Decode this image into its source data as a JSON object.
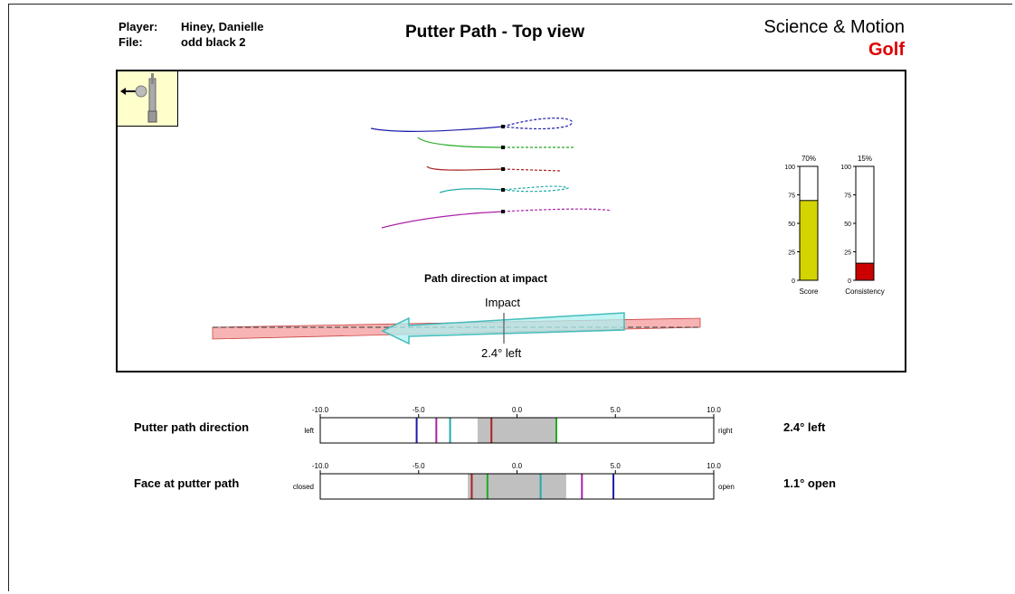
{
  "header": {
    "player_label": "Player:",
    "player_value": "Hiney, Danielle",
    "file_label": "File:",
    "file_value": "odd black 2",
    "title": "Putter Path - Top view",
    "brand_line1": "Science & Motion",
    "brand_line2": "Golf"
  },
  "icon": {
    "name": "putter-head-icon"
  },
  "path_panel": {
    "title": "Path direction at impact",
    "impact_label": "Impact",
    "angle_label": "2.4° left"
  },
  "colors": {
    "blue": "#1c1caa",
    "green": "#22aa22",
    "red": "#aa2222",
    "teal": "#22aaaa",
    "magenta": "#aa22aa",
    "score": "#d4d400",
    "consistency": "#cc0000",
    "grey_band": "#c0c0c0"
  },
  "chart_data": [
    {
      "type": "bar",
      "title": "Score",
      "categories": [
        "Score"
      ],
      "values": [
        70
      ],
      "value_label": "70%",
      "ylim": [
        0,
        100
      ],
      "ticks": [
        "0",
        "25",
        "50",
        "75",
        "100"
      ]
    },
    {
      "type": "bar",
      "title": "Consistency",
      "categories": [
        "Consistency"
      ],
      "values": [
        15
      ],
      "value_label": "15%",
      "ylim": [
        0,
        100
      ],
      "ticks": [
        "0",
        "25",
        "50",
        "75",
        "100"
      ]
    },
    {
      "type": "scatter",
      "title": "Putter path direction",
      "xlim": [
        -10,
        10
      ],
      "ticks": [
        "-10.0",
        "-5.0",
        "0.0",
        "5.0",
        "10.0"
      ],
      "left_label": "left",
      "right_label": "right",
      "result": "2.4° left",
      "band": [
        -2,
        2
      ],
      "series": [
        {
          "color": "blue",
          "value": -5.1
        },
        {
          "color": "magenta",
          "value": -4.1
        },
        {
          "color": "teal",
          "value": -3.4
        },
        {
          "color": "red",
          "value": -1.3
        },
        {
          "color": "green",
          "value": 2.0
        }
      ]
    },
    {
      "type": "scatter",
      "title": "Face at putter path",
      "xlim": [
        -10,
        10
      ],
      "ticks": [
        "-10.0",
        "-5.0",
        "0.0",
        "5.0",
        "10.0"
      ],
      "left_label": "closed",
      "right_label": "open",
      "result": "1.1° open",
      "band": [
        -2.5,
        2.5
      ],
      "series": [
        {
          "color": "red",
          "value": -2.3
        },
        {
          "color": "green",
          "value": -1.5
        },
        {
          "color": "teal",
          "value": 1.2
        },
        {
          "color": "magenta",
          "value": 3.3
        },
        {
          "color": "blue",
          "value": 4.9
        }
      ]
    }
  ]
}
